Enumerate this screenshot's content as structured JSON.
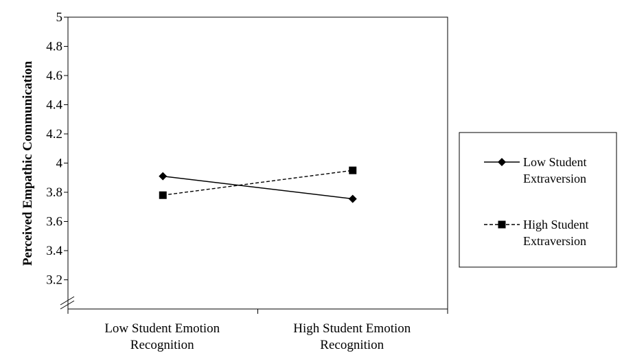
{
  "chart_data": {
    "type": "line",
    "categories": [
      "Low Student Emotion Recognition",
      "High Student Emotion Recognition"
    ],
    "category_lines": [
      [
        "Low Student Emotion",
        "Recognition"
      ],
      [
        "High Student Emotion",
        "Recognition"
      ]
    ],
    "ylabel": "Perceived  Empathic Communication",
    "xlabel": "",
    "ylim": [
      3.0,
      5.0
    ],
    "yticks": [
      "3.2",
      "3.4",
      "3.6",
      "3.8",
      "4",
      "4.2",
      "4.4",
      "4.6",
      "4.8",
      "5"
    ],
    "axis_break": true,
    "grid": false,
    "legend_position": "right",
    "series": [
      {
        "name": "Low Student Extraversion",
        "name_lines": [
          "Low Student",
          "Extraversion"
        ],
        "values": [
          3.91,
          3.755
        ],
        "marker": "diamond",
        "line_style": "solid",
        "color": "#000000"
      },
      {
        "name": "High Student Extraversion",
        "name_lines": [
          "High Student",
          "Extraversion"
        ],
        "values": [
          3.78,
          3.95
        ],
        "marker": "square",
        "line_style": "dashed",
        "color": "#000000"
      }
    ]
  }
}
